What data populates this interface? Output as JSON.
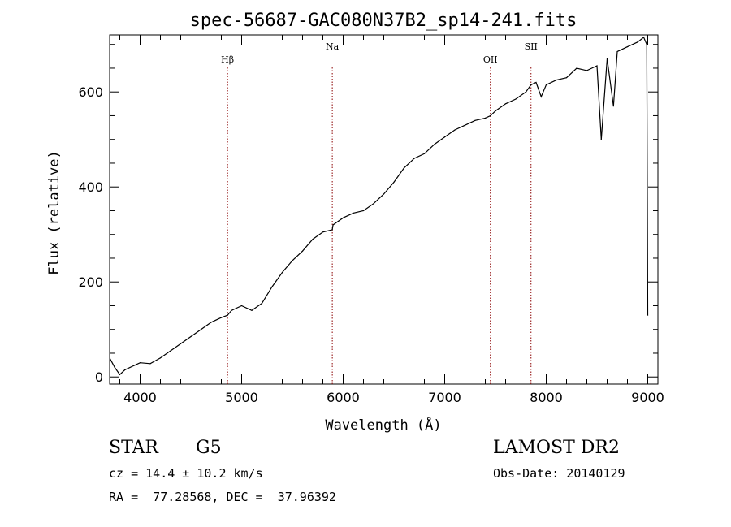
{
  "chart_data": {
    "type": "line",
    "title": "spec-56687-GAC080N37B2_sp14-241.fits",
    "xlabel": "Wavelength (Å)",
    "ylabel": "Flux (relative)",
    "xlim": [
      3700,
      9100
    ],
    "ylim": [
      -15,
      720
    ],
    "x_ticks": [
      "4000",
      "5000",
      "6000",
      "7000",
      "8000",
      "9000"
    ],
    "y_ticks": [
      "0",
      "200",
      "400",
      "600"
    ],
    "grid": false,
    "series": [
      {
        "x": [
          3700,
          3750,
          3800,
          3850,
          3900,
          3950,
          4000,
          4100,
          4200,
          4300,
          4400,
          4500,
          4600,
          4700,
          4800,
          4861,
          4900,
          5000,
          5100,
          5200,
          5300,
          5400,
          5500,
          5600,
          5700,
          5800,
          5893,
          5900,
          6000,
          6100,
          6200,
          6300,
          6400,
          6500,
          6600,
          6700,
          6800,
          6900,
          7000,
          7100,
          7200,
          7300,
          7400,
          7450,
          7500,
          7600,
          7700,
          7800,
          7850,
          7900,
          7950,
          8000,
          8100,
          8200,
          8300,
          8400,
          8500,
          8542,
          8600,
          8662,
          8700,
          8800,
          8900,
          8960,
          8990,
          9000
        ],
        "y": [
          40,
          20,
          5,
          15,
          20,
          25,
          30,
          28,
          40,
          55,
          70,
          85,
          100,
          115,
          125,
          130,
          140,
          150,
          140,
          155,
          190,
          220,
          245,
          265,
          290,
          305,
          310,
          320,
          335,
          345,
          350,
          365,
          385,
          410,
          440,
          460,
          470,
          490,
          505,
          520,
          530,
          540,
          545,
          550,
          560,
          575,
          585,
          600,
          615,
          620,
          590,
          615,
          625,
          630,
          650,
          645,
          655,
          500,
          670,
          570,
          685,
          695,
          705,
          715,
          700,
          130
        ]
      }
    ],
    "annotations": [
      {
        "label": "Hβ",
        "x": 4861
      },
      {
        "label": "Na",
        "x": 5893
      },
      {
        "label": "OII",
        "x": 7450
      },
      {
        "label": "SII",
        "x": 7850
      }
    ]
  },
  "info": {
    "object_class": "STAR",
    "subclass": "G5",
    "survey": "LAMOST DR2",
    "redshift": "cz = 14.4 ± 10.2 km/s",
    "obs_date": "Obs-Date: 20140129",
    "coordinates": "RA =  77.28568, DEC =  37.96392"
  },
  "colors": {
    "line": "#000000",
    "marker": "#8b0000",
    "background": "#ffffff"
  }
}
